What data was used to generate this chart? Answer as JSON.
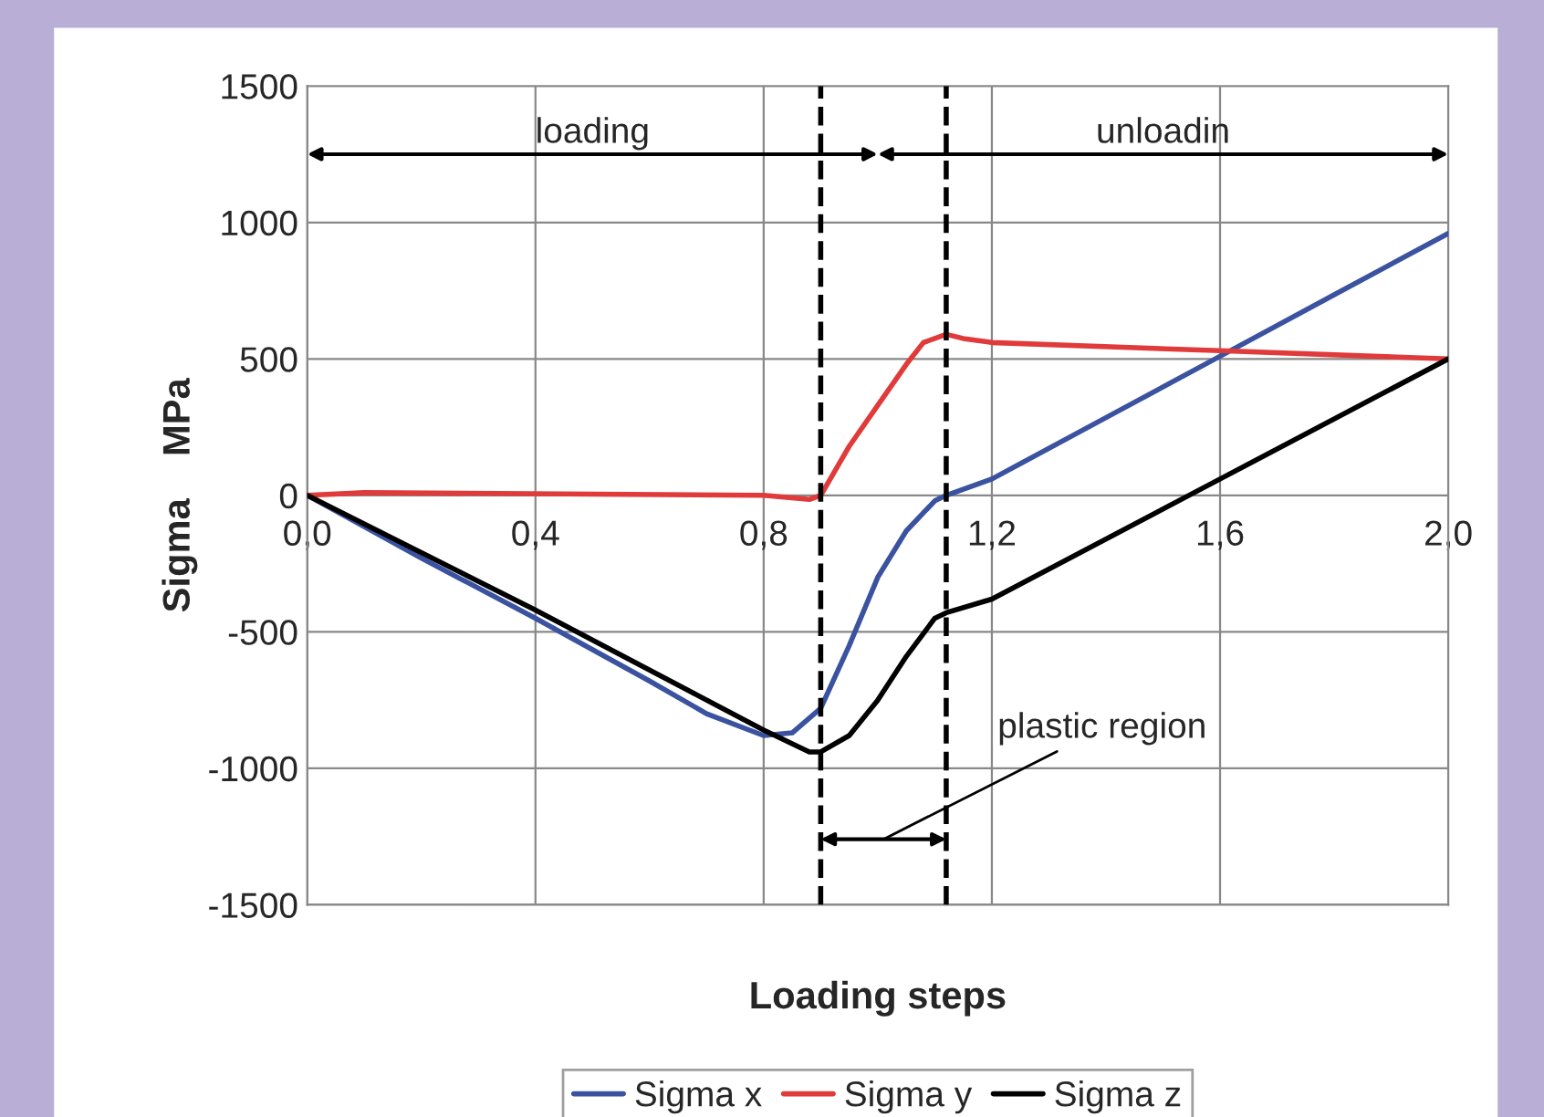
{
  "chart_data": {
    "type": "line",
    "xlabel": "Loading steps",
    "ylabel": "Sigma    MPa",
    "xlim": [
      0,
      2.0
    ],
    "ylim": [
      -1500,
      1500
    ],
    "xticks": [
      {
        "value": 0,
        "label": "0,0"
      },
      {
        "value": 0.4,
        "label": "0,4"
      },
      {
        "value": 0.8,
        "label": "0,8"
      },
      {
        "value": 1.2,
        "label": "1,2"
      },
      {
        "value": 1.6,
        "label": "1,6"
      },
      {
        "value": 2.0,
        "label": "2,0"
      }
    ],
    "yticks": [
      -1500,
      -1000,
      -500,
      0,
      500,
      1000,
      1500
    ],
    "grid": true,
    "legend": "bottom",
    "marker": "none",
    "line_style": "solid",
    "series": [
      {
        "name": "Sigma x",
        "color": "#3a52a0",
        "x": [
          0,
          0.2,
          0.4,
          0.6,
          0.7,
          0.8,
          0.85,
          0.9,
          0.95,
          1.0,
          1.05,
          1.1,
          1.12,
          1.2,
          1.4,
          1.6,
          1.8,
          2.0
        ],
        "values": [
          0,
          -230,
          -450,
          -680,
          -800,
          -880,
          -870,
          -780,
          -550,
          -300,
          -130,
          -20,
          0,
          60,
          285,
          510,
          735,
          960
        ]
      },
      {
        "name": "Sigma y",
        "color": "#e03a3a",
        "x": [
          0,
          0.1,
          0.8,
          0.88,
          0.9,
          0.95,
          1.0,
          1.05,
          1.08,
          1.12,
          1.15,
          1.2,
          1.6,
          2.0
        ],
        "values": [
          0,
          10,
          0,
          -15,
          0,
          180,
          330,
          480,
          560,
          590,
          575,
          560,
          530,
          500
        ]
      },
      {
        "name": "Sigma z",
        "color": "#000000",
        "x": [
          0,
          0.4,
          0.8,
          0.88,
          0.9,
          0.95,
          1.0,
          1.05,
          1.1,
          1.12,
          1.2,
          1.6,
          2.0
        ],
        "values": [
          0,
          -420,
          -860,
          -940,
          -940,
          -880,
          -750,
          -590,
          -450,
          -430,
          -380,
          60,
          500
        ]
      }
    ],
    "ref_lines": [
      {
        "axis": "x",
        "value": 0.9,
        "color": "#000000",
        "line_style": "dashed"
      },
      {
        "axis": "x",
        "value": 1.12,
        "color": "#000000",
        "line_style": "dashed"
      }
    ],
    "annotations": [
      "loading",
      "unloadin",
      "plastic region"
    ]
  }
}
